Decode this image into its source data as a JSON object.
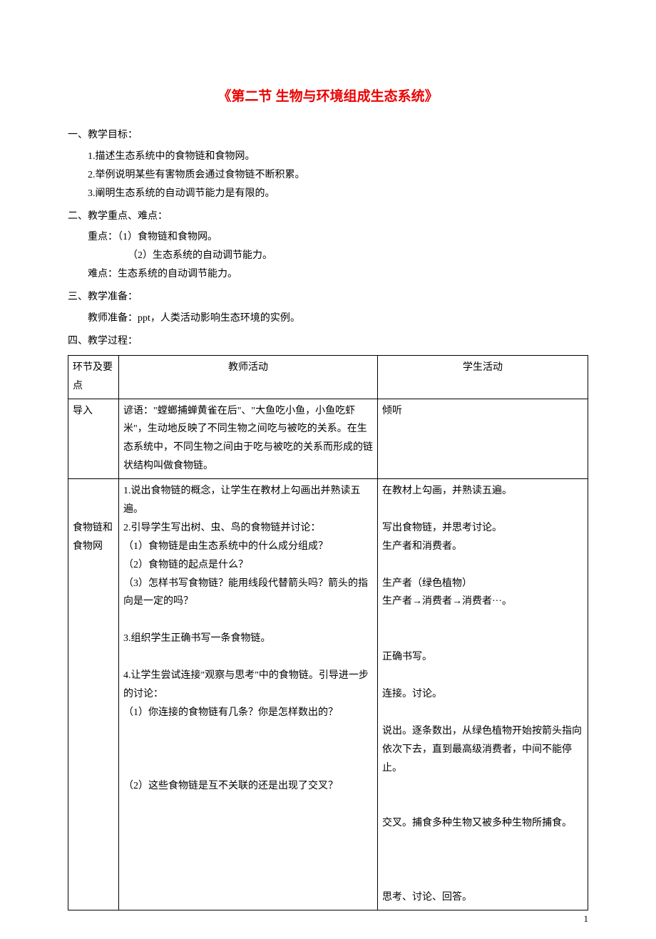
{
  "title": "《第二节 生物与环境组成生态系统》",
  "sections": {
    "s1": {
      "heading": "一、教学目标：",
      "items": [
        "1.描述生态系统中的食物链和食物网。",
        "2.举例说明某些有害物质会通过食物链不断积累。",
        "3.阐明生态系统的自动调节能力是有限的。"
      ]
    },
    "s2": {
      "heading": "二、教学重点、难点：",
      "key_label": "重点：（1）食物链和食物网。",
      "key_sub": "（2）生态系统的自动调节能力。",
      "diff_label": "难点：生态系统的自动调节能力。"
    },
    "s3": {
      "heading": "三、教学准备：",
      "content": "教师准备：ppt，人类活动影响生态环境的实例。"
    },
    "s4": {
      "heading": "四、教学过程："
    }
  },
  "table": {
    "header": {
      "c1": "环节及要点",
      "c2": "教师活动",
      "c3": "学生活动"
    },
    "rows": [
      {
        "c1": "导入",
        "c2": "谚语：\"螳螂捕蝉黄雀在后\"、\"大鱼吃小鱼，小鱼吃虾米\"，生动地反映了不同生物之间吃与被吃的关系。在生态系统中，不同生物之间由于吃与被吃的关系而形成的链状结构叫做食物链。",
        "c3": "倾听"
      },
      {
        "c1_line1": "",
        "c1_line2": "",
        "c1_line3": "食物链和食物网",
        "c2_1": "1.说出食物链的概念，让学生在教材上勾画出并熟读五遍。",
        "c2_2": "2.引导学生写出树、虫、鸟的食物链并讨论：",
        "c2_2a": "（1）食物链是由生态系统中的什么成分组成？",
        "c2_2b": "（2）食物链的起点是什么？",
        "c2_2c": "（3）怎样书写食物链？能用线段代替箭头吗？箭头的指向是一定的吗？",
        "c2_3": "3.组织学生正确书写一条食物链。",
        "c2_4": "4.让学生尝试连接\"观察与思考\"中的食物链。引导进一步的讨论：",
        "c2_4a": "（1）你连接的食物链有几条？你是怎样数出的？",
        "c2_4b": "（2）这些食物链是互不关联的还是出现了交叉？",
        "c3_1": "在教材上勾画，并熟读五遍。",
        "c3_2": "写出食物链，并思考讨论。",
        "c3_3": "生产者和消费者。",
        "c3_4": "生产者（绿色植物）",
        "c3_5": "生产者→消费者→消费者···。",
        "c3_6": "正确书写。",
        "c3_7": "连接。讨论。",
        "c3_8": "说出。逐条数出，从绿色植物开始按箭头指向依次下去，直到最高级消费者，中间不能停止。",
        "c3_9": "交叉。捕食多种生物又被多种生物所捕食。",
        "c3_10": "思考、讨论、回答。"
      }
    ]
  },
  "page_number": "1",
  "colors": {
    "title": "#ed0000",
    "text": "#000000",
    "border": "#000000",
    "background": "#ffffff"
  }
}
